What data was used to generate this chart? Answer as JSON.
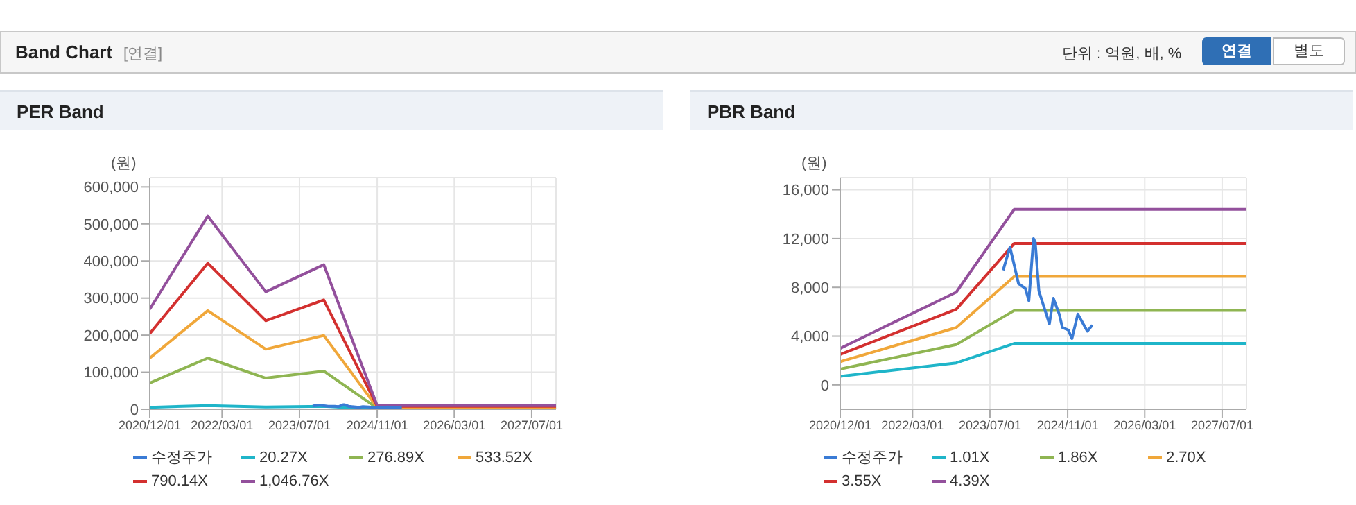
{
  "chart_data": [
    {
      "type": "line",
      "title": "PER Band",
      "ylabel": "(원)",
      "annotations": [
        "Band Chart",
        "[연결]",
        "단위 : 억원, 배, %",
        "연결",
        "별도"
      ],
      "xlim": [
        "2020-12-01",
        "2027-12-01"
      ],
      "xticks": [
        {
          "value": "2020-12-01",
          "label": "2020/12/01"
        },
        {
          "value": "2022-03-01",
          "label": "2022/03/01"
        },
        {
          "value": "2023-07-01",
          "label": "2023/07/01"
        },
        {
          "value": "2024-11-01",
          "label": "2024/11/01"
        },
        {
          "value": "2026-03-01",
          "label": "2026/03/01"
        },
        {
          "value": "2027-07-01",
          "label": "2027/07/01"
        }
      ],
      "ylim": [
        0,
        625000
      ],
      "yticks": [
        {
          "value": 0,
          "label": "0"
        },
        {
          "value": 100000,
          "label": "100,000"
        },
        {
          "value": 200000,
          "label": "200,000"
        },
        {
          "value": 300000,
          "label": "300,000"
        },
        {
          "value": 400000,
          "label": "400,000"
        },
        {
          "value": 500000,
          "label": "500,000"
        },
        {
          "value": 600000,
          "label": "600,000"
        }
      ],
      "grid": true,
      "legend": "bottom",
      "series": [
        {
          "name": "수정주가",
          "color": "#3a7bd5",
          "x": [
            "2023-09-22",
            "2023-11-04",
            "2023-11-24",
            "2023-12-28",
            "2024-02-09",
            "2024-03-02",
            "2024-03-31",
            "2024-04-11",
            "2024-05-04",
            "2024-07-09",
            "2024-08-03",
            "2024-09-09",
            "2024-09-29",
            "2024-11-05",
            "2024-11-28",
            "2025-01-04",
            "2025-03-05",
            "2025-04-05"
          ],
          "values": [
            9000,
            11000,
            10000,
            8000,
            8000,
            7000,
            12000,
            12000,
            8000,
            5000,
            7000,
            6000,
            5000,
            4000,
            4000,
            6000,
            4000,
            5000
          ]
        },
        {
          "name": "20.27X",
          "color": "#1fb5c9",
          "x": [
            "2020-12-01",
            "2021-12-01",
            "2022-12-01",
            "2023-12-01",
            "2024-11-01",
            "2027-12-01"
          ],
          "values": [
            5000,
            10000,
            6000,
            8000,
            0,
            0
          ]
        },
        {
          "name": "276.89X",
          "color": "#8fb552",
          "x": [
            "2020-12-01",
            "2021-12-01",
            "2022-12-01",
            "2023-12-01",
            "2024-11-01",
            "2027-12-01"
          ],
          "values": [
            71000,
            138000,
            84000,
            103000,
            3000,
            3000
          ]
        },
        {
          "name": "533.52X",
          "color": "#f0a73a",
          "x": [
            "2020-12-01",
            "2021-12-01",
            "2022-12-01",
            "2023-12-01",
            "2024-11-01",
            "2027-12-01"
          ],
          "values": [
            138000,
            266000,
            162000,
            199000,
            5000,
            5000
          ]
        },
        {
          "name": "790.14X",
          "color": "#d3302f",
          "x": [
            "2020-12-01",
            "2021-12-01",
            "2022-12-01",
            "2023-12-01",
            "2024-11-01",
            "2027-12-01"
          ],
          "values": [
            204000,
            394000,
            239000,
            295000,
            8000,
            8000
          ]
        },
        {
          "name": "1,046.76X",
          "color": "#93509c",
          "x": [
            "2020-12-01",
            "2021-12-01",
            "2022-12-01",
            "2023-12-01",
            "2024-11-01",
            "2027-12-01"
          ],
          "values": [
            270000,
            521000,
            317000,
            390000,
            10000,
            10000
          ]
        }
      ]
    },
    {
      "type": "line",
      "title": "PBR Band",
      "ylabel": "(원)",
      "xlim": [
        "2020-12-01",
        "2027-12-01"
      ],
      "xticks": [
        {
          "value": "2020-12-01",
          "label": "2020/12/01"
        },
        {
          "value": "2022-03-01",
          "label": "2022/03/01"
        },
        {
          "value": "2023-07-01",
          "label": "2023/07/01"
        },
        {
          "value": "2024-11-01",
          "label": "2024/11/01"
        },
        {
          "value": "2026-03-01",
          "label": "2026/03/01"
        },
        {
          "value": "2027-07-01",
          "label": "2027/07/01"
        }
      ],
      "ylim": [
        -2000,
        17000
      ],
      "yticks": [
        {
          "value": 0,
          "label": "0"
        },
        {
          "value": 4000,
          "label": "4,000"
        },
        {
          "value": 8000,
          "label": "8,000"
        },
        {
          "value": 12000,
          "label": "12,000"
        },
        {
          "value": 16000,
          "label": "16,000"
        }
      ],
      "grid": true,
      "legend": "bottom",
      "series": [
        {
          "name": "수정주가",
          "color": "#3a7bd5",
          "x": [
            "2023-09-22",
            "2023-11-04",
            "2023-11-24",
            "2023-12-28",
            "2024-02-09",
            "2024-03-02",
            "2024-03-31",
            "2024-04-11",
            "2024-05-04",
            "2024-07-09",
            "2024-08-03",
            "2024-09-09",
            "2024-09-29",
            "2024-11-05",
            "2024-11-28",
            "2025-01-04",
            "2025-03-05",
            "2025-04-05"
          ],
          "values": [
            9400,
            11300,
            10200,
            8300,
            7900,
            6900,
            12000,
            11700,
            7700,
            5000,
            7100,
            5800,
            4700,
            4500,
            3800,
            5800,
            4400,
            4900
          ]
        },
        {
          "name": "1.01X",
          "color": "#1fb5c9",
          "x": [
            "2020-12-01",
            "2022-12-01",
            "2023-12-01",
            "2027-12-01"
          ],
          "values": [
            700,
            1800,
            3400,
            3400
          ]
        },
        {
          "name": "1.86X",
          "color": "#8fb552",
          "x": [
            "2020-12-01",
            "2022-12-01",
            "2023-12-01",
            "2027-12-01"
          ],
          "values": [
            1300,
            3300,
            6100,
            6100
          ]
        },
        {
          "name": "2.70X",
          "color": "#f0a73a",
          "x": [
            "2020-12-01",
            "2022-12-01",
            "2023-12-01",
            "2027-12-01"
          ],
          "values": [
            1900,
            4700,
            8900,
            8900
          ]
        },
        {
          "name": "3.55X",
          "color": "#d3302f",
          "x": [
            "2020-12-01",
            "2022-12-01",
            "2023-12-01",
            "2027-12-01"
          ],
          "values": [
            2500,
            6200,
            11600,
            11600
          ]
        },
        {
          "name": "4.39X",
          "color": "#93509c",
          "x": [
            "2020-12-01",
            "2022-12-01",
            "2023-12-01",
            "2027-12-01"
          ],
          "values": [
            3000,
            7600,
            14400,
            14400
          ]
        }
      ]
    }
  ]
}
